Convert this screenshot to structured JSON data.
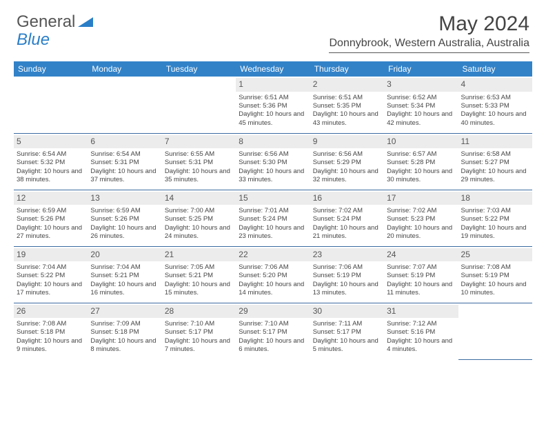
{
  "logo": {
    "text1": "General",
    "text2": "Blue"
  },
  "title": "May 2024",
  "location": "Donnybrook, Western Australia, Australia",
  "colors": {
    "header_bg": "#3282c8",
    "header_text": "#ffffff",
    "cell_divider": "#3a6aa0",
    "daynum_bg": "#ececec",
    "text": "#444444",
    "logo_blue": "#2a7ec7"
  },
  "days": [
    "Sunday",
    "Monday",
    "Tuesday",
    "Wednesday",
    "Thursday",
    "Friday",
    "Saturday"
  ],
  "weeks": [
    [
      null,
      null,
      null,
      {
        "n": "1",
        "sr": "6:51 AM",
        "ss": "5:36 PM",
        "dl": "10 hours and 45 minutes."
      },
      {
        "n": "2",
        "sr": "6:51 AM",
        "ss": "5:35 PM",
        "dl": "10 hours and 43 minutes."
      },
      {
        "n": "3",
        "sr": "6:52 AM",
        "ss": "5:34 PM",
        "dl": "10 hours and 42 minutes."
      },
      {
        "n": "4",
        "sr": "6:53 AM",
        "ss": "5:33 PM",
        "dl": "10 hours and 40 minutes."
      }
    ],
    [
      {
        "n": "5",
        "sr": "6:54 AM",
        "ss": "5:32 PM",
        "dl": "10 hours and 38 minutes."
      },
      {
        "n": "6",
        "sr": "6:54 AM",
        "ss": "5:31 PM",
        "dl": "10 hours and 37 minutes."
      },
      {
        "n": "7",
        "sr": "6:55 AM",
        "ss": "5:31 PM",
        "dl": "10 hours and 35 minutes."
      },
      {
        "n": "8",
        "sr": "6:56 AM",
        "ss": "5:30 PM",
        "dl": "10 hours and 33 minutes."
      },
      {
        "n": "9",
        "sr": "6:56 AM",
        "ss": "5:29 PM",
        "dl": "10 hours and 32 minutes."
      },
      {
        "n": "10",
        "sr": "6:57 AM",
        "ss": "5:28 PM",
        "dl": "10 hours and 30 minutes."
      },
      {
        "n": "11",
        "sr": "6:58 AM",
        "ss": "5:27 PM",
        "dl": "10 hours and 29 minutes."
      }
    ],
    [
      {
        "n": "12",
        "sr": "6:59 AM",
        "ss": "5:26 PM",
        "dl": "10 hours and 27 minutes."
      },
      {
        "n": "13",
        "sr": "6:59 AM",
        "ss": "5:26 PM",
        "dl": "10 hours and 26 minutes."
      },
      {
        "n": "14",
        "sr": "7:00 AM",
        "ss": "5:25 PM",
        "dl": "10 hours and 24 minutes."
      },
      {
        "n": "15",
        "sr": "7:01 AM",
        "ss": "5:24 PM",
        "dl": "10 hours and 23 minutes."
      },
      {
        "n": "16",
        "sr": "7:02 AM",
        "ss": "5:24 PM",
        "dl": "10 hours and 21 minutes."
      },
      {
        "n": "17",
        "sr": "7:02 AM",
        "ss": "5:23 PM",
        "dl": "10 hours and 20 minutes."
      },
      {
        "n": "18",
        "sr": "7:03 AM",
        "ss": "5:22 PM",
        "dl": "10 hours and 19 minutes."
      }
    ],
    [
      {
        "n": "19",
        "sr": "7:04 AM",
        "ss": "5:22 PM",
        "dl": "10 hours and 17 minutes."
      },
      {
        "n": "20",
        "sr": "7:04 AM",
        "ss": "5:21 PM",
        "dl": "10 hours and 16 minutes."
      },
      {
        "n": "21",
        "sr": "7:05 AM",
        "ss": "5:21 PM",
        "dl": "10 hours and 15 minutes."
      },
      {
        "n": "22",
        "sr": "7:06 AM",
        "ss": "5:20 PM",
        "dl": "10 hours and 14 minutes."
      },
      {
        "n": "23",
        "sr": "7:06 AM",
        "ss": "5:19 PM",
        "dl": "10 hours and 13 minutes."
      },
      {
        "n": "24",
        "sr": "7:07 AM",
        "ss": "5:19 PM",
        "dl": "10 hours and 11 minutes."
      },
      {
        "n": "25",
        "sr": "7:08 AM",
        "ss": "5:19 PM",
        "dl": "10 hours and 10 minutes."
      }
    ],
    [
      {
        "n": "26",
        "sr": "7:08 AM",
        "ss": "5:18 PM",
        "dl": "10 hours and 9 minutes."
      },
      {
        "n": "27",
        "sr": "7:09 AM",
        "ss": "5:18 PM",
        "dl": "10 hours and 8 minutes."
      },
      {
        "n": "28",
        "sr": "7:10 AM",
        "ss": "5:17 PM",
        "dl": "10 hours and 7 minutes."
      },
      {
        "n": "29",
        "sr": "7:10 AM",
        "ss": "5:17 PM",
        "dl": "10 hours and 6 minutes."
      },
      {
        "n": "30",
        "sr": "7:11 AM",
        "ss": "5:17 PM",
        "dl": "10 hours and 5 minutes."
      },
      {
        "n": "31",
        "sr": "7:12 AM",
        "ss": "5:16 PM",
        "dl": "10 hours and 4 minutes."
      },
      null
    ]
  ],
  "labels": {
    "sunrise": "Sunrise:",
    "sunset": "Sunset:",
    "daylight": "Daylight:"
  }
}
